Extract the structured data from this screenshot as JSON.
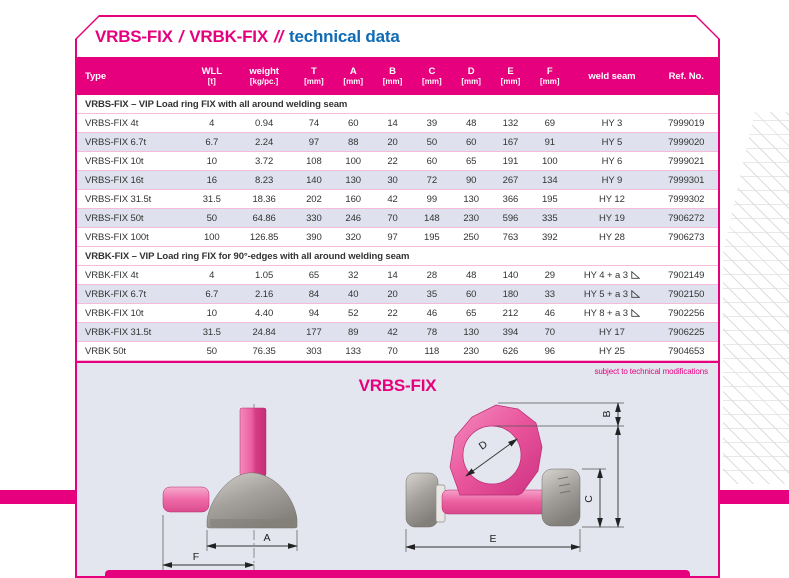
{
  "header": {
    "product1": "VRBS-FIX",
    "slash1": "/",
    "product2": "VRBK-FIX",
    "slash2": "//",
    "suffix": "technical data"
  },
  "colors": {
    "brand_pink": "#e6007e",
    "title_blue": "#0f6cb4",
    "section_gray": "#7b7b7b",
    "row_stripe": "#dfe2ee",
    "drawing_background": "#e3e5ef"
  },
  "table": {
    "columns": [
      {
        "key": "type",
        "label": "Type",
        "unit": ""
      },
      {
        "key": "wll",
        "label": "WLL",
        "unit": "[t]"
      },
      {
        "key": "weight",
        "label": "weight",
        "unit": "[kg/pc.]"
      },
      {
        "key": "t",
        "label": "T",
        "unit": "[mm]"
      },
      {
        "key": "a",
        "label": "A",
        "unit": "[mm]"
      },
      {
        "key": "b",
        "label": "B",
        "unit": "[mm]"
      },
      {
        "key": "c",
        "label": "C",
        "unit": "[mm]"
      },
      {
        "key": "d",
        "label": "D",
        "unit": "[mm]"
      },
      {
        "key": "e",
        "label": "E",
        "unit": "[mm]"
      },
      {
        "key": "f",
        "label": "F",
        "unit": "[mm]"
      },
      {
        "key": "weld",
        "label": "weld seam",
        "unit": ""
      },
      {
        "key": "ref",
        "label": "Ref. No.",
        "unit": ""
      }
    ],
    "sections": [
      {
        "header": "VRBS-FIX – VIP Load ring FIX with all around welding seam",
        "rows": [
          {
            "cells": [
              "VRBS-FIX 4t",
              "4",
              "0.94",
              "74",
              "60",
              "14",
              "39",
              "48",
              "132",
              "69",
              "HY 3",
              "7999019"
            ],
            "weld_mark": false
          },
          {
            "cells": [
              "VRBS-FIX 6.7t",
              "6.7",
              "2.24",
              "97",
              "88",
              "20",
              "50",
              "60",
              "167",
              "91",
              "HY 5",
              "7999020"
            ],
            "weld_mark": false
          },
          {
            "cells": [
              "VRBS-FIX 10t",
              "10",
              "3.72",
              "108",
              "100",
              "22",
              "60",
              "65",
              "191",
              "100",
              "HY 6",
              "7999021"
            ],
            "weld_mark": false
          },
          {
            "cells": [
              "VRBS-FIX 16t",
              "16",
              "8.23",
              "140",
              "130",
              "30",
              "72",
              "90",
              "267",
              "134",
              "HY 9",
              "7999301"
            ],
            "weld_mark": false
          },
          {
            "cells": [
              "VRBS-FIX 31.5t",
              "31.5",
              "18.36",
              "202",
              "160",
              "42",
              "99",
              "130",
              "366",
              "195",
              "HY 12",
              "7999302"
            ],
            "weld_mark": false
          },
          {
            "cells": [
              "VRBS-FIX 50t",
              "50",
              "64.86",
              "330",
              "246",
              "70",
              "148",
              "230",
              "596",
              "335",
              "HY 19",
              "7906272"
            ],
            "weld_mark": false
          },
          {
            "cells": [
              "VRBS-FIX 100t",
              "100",
              "126.85",
              "390",
              "320",
              "97",
              "195",
              "250",
              "763",
              "392",
              "HY 28",
              "7906273"
            ],
            "weld_mark": false
          }
        ]
      },
      {
        "header": "VRBK-FIX – VIP Load ring FIX for 90°-edges with all around welding seam",
        "rows": [
          {
            "cells": [
              "VRBK-FIX 4t",
              "4",
              "1.05",
              "65",
              "32",
              "14",
              "28",
              "48",
              "140",
              "29",
              "HY 4 + a 3",
              "7902149"
            ],
            "weld_mark": true
          },
          {
            "cells": [
              "VRBK-FIX 6.7t",
              "6.7",
              "2.16",
              "84",
              "40",
              "20",
              "35",
              "60",
              "180",
              "33",
              "HY 5 + a 3",
              "7902150"
            ],
            "weld_mark": true
          },
          {
            "cells": [
              "VRBK-FIX 10t",
              "10",
              "4.40",
              "94",
              "52",
              "22",
              "46",
              "65",
              "212",
              "46",
              "HY 8 + a 3",
              "7902256"
            ],
            "weld_mark": true
          },
          {
            "cells": [
              "VRBK-FIX 31.5t",
              "31.5",
              "24.84",
              "177",
              "89",
              "42",
              "78",
              "130",
              "394",
              "70",
              "HY 17",
              "7906225"
            ],
            "weld_mark": false
          },
          {
            "cells": [
              "VRBK 50t",
              "50",
              "76.35",
              "303",
              "133",
              "70",
              "118",
              "230",
              "626",
              "96",
              "HY 25",
              "7904653"
            ],
            "weld_mark": false
          }
        ]
      }
    ]
  },
  "drawing": {
    "note": "subject to technical modifications",
    "title": "VRBS-FIX",
    "dims": {
      "a": "A",
      "b": "B",
      "c": "C",
      "d": "D",
      "e": "E",
      "f": "F"
    }
  }
}
